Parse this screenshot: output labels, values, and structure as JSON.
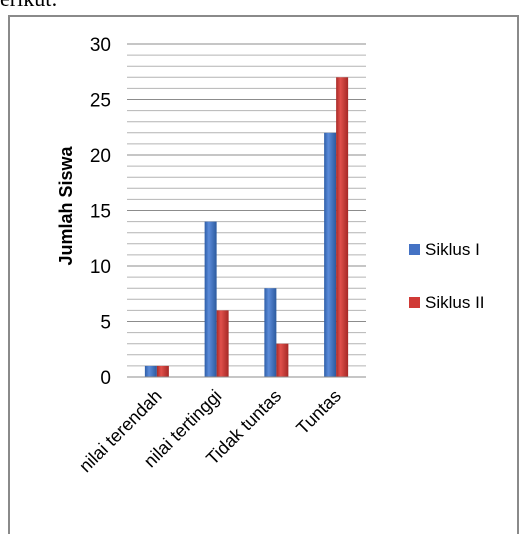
{
  "page": {
    "snippet_text": "erikut:"
  },
  "chart_data": {
    "type": "bar",
    "title": "",
    "xlabel": "",
    "ylabel": "Jumlah Siswa",
    "ylim": [
      0,
      30
    ],
    "yticks": [
      0,
      5,
      10,
      15,
      20,
      25,
      30
    ],
    "minor_grid_step": 1,
    "grid": true,
    "legend_position": "right",
    "categories": [
      "nilai terendah",
      "nilai tertinggi",
      "Tidak tuntas",
      "Tuntas"
    ],
    "series": [
      {
        "name": "Siklus I",
        "values": [
          1,
          14,
          8,
          22
        ],
        "color": "#4472C4"
      },
      {
        "name": "Siklus II",
        "values": [
          1,
          6,
          3,
          27
        ],
        "color": "#D03A36"
      }
    ]
  }
}
